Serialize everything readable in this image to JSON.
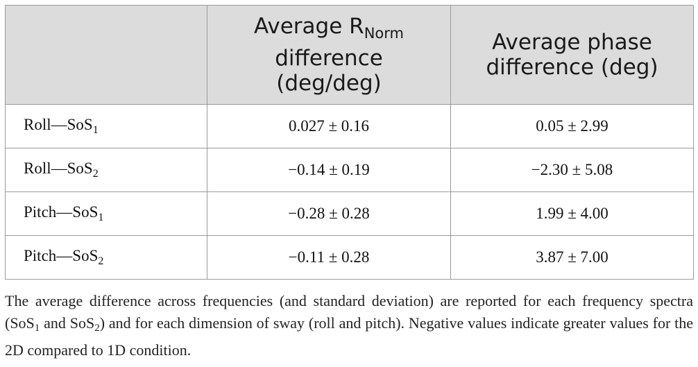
{
  "table": {
    "headers": {
      "col1": "",
      "col2": {
        "line1_main": "Average R",
        "line1_sub": "Norm",
        "line2": "difference",
        "line3": "(deg/deg)"
      },
      "col3": {
        "line1": "Average phase",
        "line2": "difference (deg)"
      }
    },
    "rows": [
      {
        "label": "Roll—SoS",
        "label_sub": "1",
        "rnorm": "0.027 ± 0.16",
        "phase": "0.05 ± 2.99"
      },
      {
        "label": "Roll—SoS",
        "label_sub": "2",
        "rnorm": "−0.14 ± 0.19",
        "phase": "−2.30 ± 5.08"
      },
      {
        "label": "Pitch—SoS",
        "label_sub": "1",
        "rnorm": "−0.28 ± 0.28",
        "phase": "1.99 ± 4.00"
      },
      {
        "label": "Pitch—SoS",
        "label_sub": "2",
        "rnorm": "−0.11 ± 0.28",
        "phase": "3.87 ± 7.00"
      }
    ]
  },
  "footnote": {
    "part1": "The average difference across frequencies (and standard deviation) are reported for each frequency spectra (SoS",
    "sub1": "1",
    "part2": " and SoS",
    "sub2": "2",
    "part3": ") and for each dimension of sway (roll and pitch). Negative values indicate greater values for the 2D compared to 1D condition."
  }
}
